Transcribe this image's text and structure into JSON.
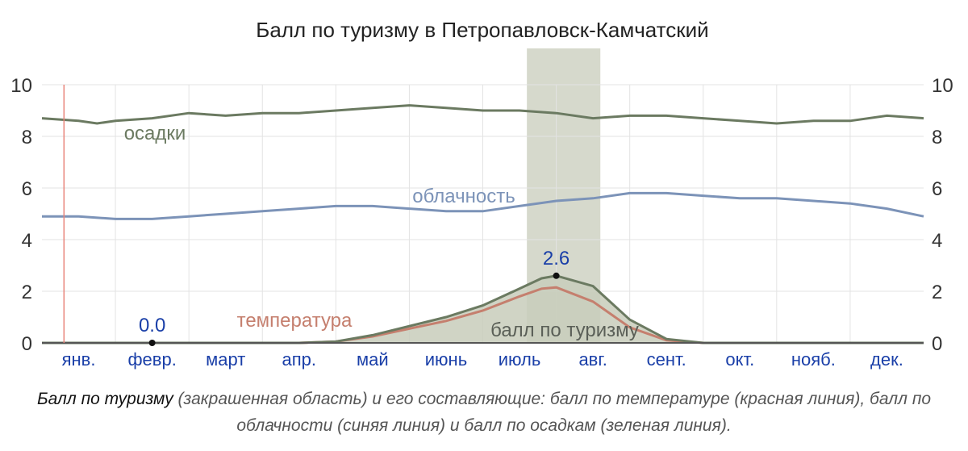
{
  "chart_data": {
    "type": "area",
    "title": "Балл по туризму в Петропавловск-Камчатский",
    "ylim": [
      0,
      10
    ],
    "yticks": [
      "0",
      "2",
      "4",
      "6",
      "8",
      "10"
    ],
    "months": [
      "янв.",
      "февр.",
      "март",
      "апр.",
      "май",
      "июнь",
      "июль",
      "авг.",
      "сент.",
      "окт.",
      "нояб.",
      "дек."
    ],
    "x_unit": "months",
    "series": [
      {
        "name": "осадки",
        "kind": "line",
        "color": "#6b7a61",
        "x": [
          0.0,
          0.5,
          0.75,
          1.0,
          1.5,
          2.0,
          2.5,
          3.0,
          3.5,
          4.0,
          4.5,
          5.0,
          5.5,
          6.0,
          6.5,
          7.0,
          7.5,
          8.0,
          8.5,
          9.0,
          9.5,
          10.0,
          10.5,
          11.0,
          11.5,
          12.0
        ],
        "values": [
          8.7,
          8.6,
          8.5,
          8.6,
          8.7,
          8.9,
          8.8,
          8.9,
          8.9,
          9.0,
          9.1,
          9.2,
          9.1,
          9.0,
          9.0,
          8.9,
          8.7,
          8.8,
          8.8,
          8.7,
          8.6,
          8.5,
          8.6,
          8.6,
          8.8,
          8.7
        ]
      },
      {
        "name": "облачность",
        "kind": "line",
        "color": "#7c93b8",
        "x": [
          0.0,
          0.5,
          1.0,
          1.5,
          2.0,
          2.5,
          3.0,
          3.5,
          4.0,
          4.5,
          5.0,
          5.5,
          6.0,
          6.5,
          7.0,
          7.5,
          8.0,
          8.5,
          9.0,
          9.5,
          10.0,
          10.5,
          11.0,
          11.5,
          12.0
        ],
        "values": [
          4.9,
          4.9,
          4.8,
          4.8,
          4.9,
          5.0,
          5.1,
          5.2,
          5.3,
          5.3,
          5.2,
          5.1,
          5.1,
          5.3,
          5.5,
          5.6,
          5.8,
          5.8,
          5.7,
          5.6,
          5.6,
          5.5,
          5.4,
          5.2,
          4.9
        ]
      },
      {
        "name": "температура",
        "kind": "line",
        "color": "#c57f6e",
        "x": [
          0.0,
          3.5,
          4.0,
          4.5,
          5.0,
          5.5,
          6.0,
          6.5,
          6.8,
          7.0,
          7.5,
          8.0,
          8.5,
          9.0,
          12.0
        ],
        "values": [
          0,
          0,
          0.05,
          0.25,
          0.55,
          0.85,
          1.25,
          1.8,
          2.1,
          2.15,
          1.6,
          0.6,
          0.1,
          0,
          0
        ]
      },
      {
        "name": "балл по туризму",
        "kind": "area",
        "color": "#6b7a61",
        "fill": "#c8ccbb",
        "x": [
          0.0,
          3.5,
          4.0,
          4.5,
          5.0,
          5.5,
          6.0,
          6.5,
          6.8,
          7.0,
          7.5,
          8.0,
          8.5,
          9.0,
          12.0
        ],
        "values": [
          0,
          0,
          0.05,
          0.3,
          0.65,
          1.0,
          1.45,
          2.1,
          2.5,
          2.6,
          2.2,
          0.9,
          0.15,
          0,
          0
        ]
      }
    ],
    "annotations": [
      {
        "label": "0.0",
        "x": 1.5,
        "y": 0.0
      },
      {
        "label": "2.6",
        "x": 7.0,
        "y": 2.6
      }
    ],
    "highlight_band": {
      "x_start": 6.6,
      "x_end": 7.6,
      "color": "#d6d9cc"
    },
    "marker_line": {
      "x": 0.3,
      "color": "#e8847a"
    },
    "colors": {
      "grid": "#e3e3e3",
      "axis": "#555555",
      "tick_text": "#1a3fa8"
    }
  },
  "caption": {
    "lead": "Балл по туризму",
    "rest": " (закрашенная область) и его составляющие: балл по температуре (красная линия), балл по облачности (синяя линия) и балл по осадкам (зеленая линия)."
  }
}
